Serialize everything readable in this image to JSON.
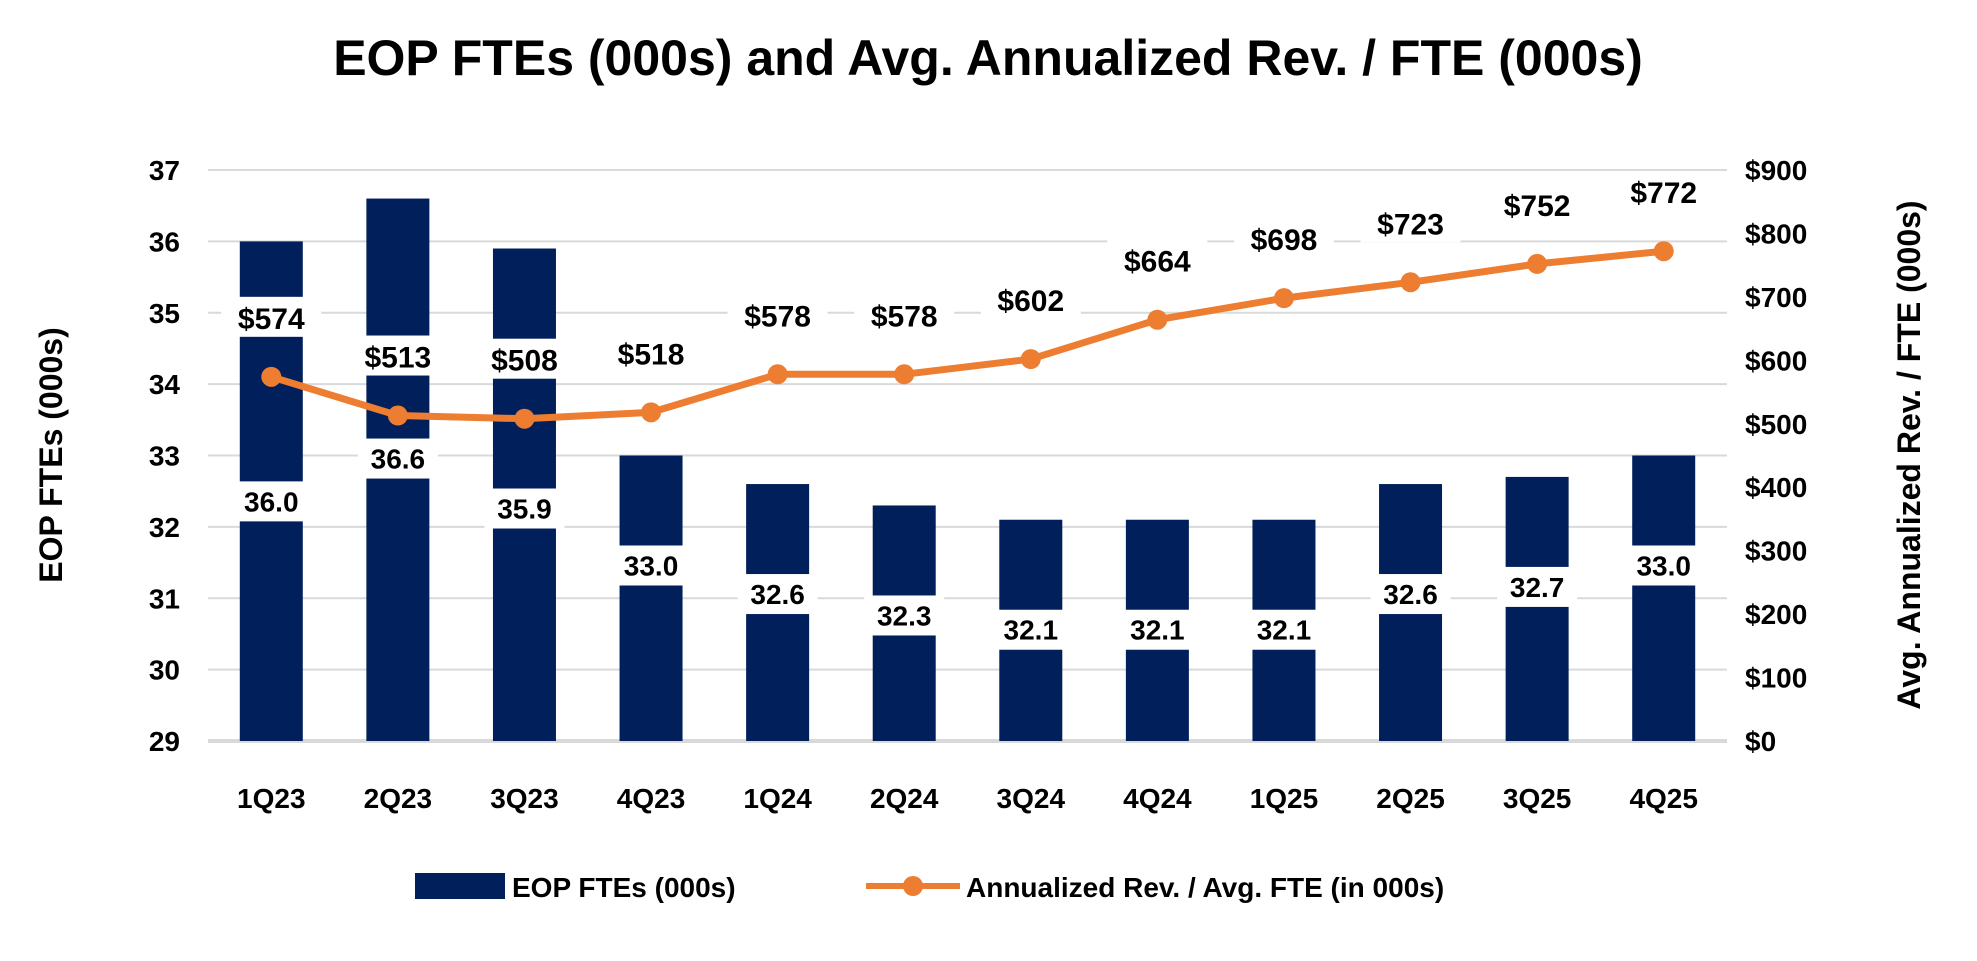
{
  "chart_data": {
    "type": "bar+line",
    "title": "EOP FTEs (000s) and Avg. Annualized Rev. / FTE (000s)",
    "categories": [
      "1Q23",
      "2Q23",
      "3Q23",
      "4Q23",
      "1Q24",
      "2Q24",
      "3Q24",
      "4Q24",
      "1Q25",
      "2Q25",
      "3Q25",
      "4Q25"
    ],
    "series": [
      {
        "name": "EOP FTEs (000s)",
        "type": "bar",
        "axis": "left",
        "color": "#001F5B",
        "values": [
          36.0,
          36.6,
          35.9,
          33.0,
          32.6,
          32.3,
          32.1,
          32.1,
          32.1,
          32.6,
          32.7,
          33.0
        ],
        "labels": [
          "36.0",
          "36.6",
          "35.9",
          "33.0",
          "32.6",
          "32.3",
          "32.1",
          "32.1",
          "32.1",
          "32.6",
          "32.7",
          "33.0"
        ]
      },
      {
        "name": "Annualized Rev. / Avg. FTE (in 000s)",
        "type": "line",
        "axis": "right",
        "color": "#ED7D31",
        "values": [
          574,
          513,
          508,
          518,
          578,
          578,
          602,
          664,
          698,
          723,
          752,
          772
        ],
        "labels": [
          "$574",
          "$513",
          "$508",
          "$518",
          "$578",
          "$578",
          "$602",
          "$664",
          "$698",
          "$723",
          "$752",
          "$772"
        ]
      }
    ],
    "ylabel": "EOP FTEs (000s)",
    "y2label": "Avg. Annualized Rev. / FTE (000s)",
    "ylim": [
      29,
      37
    ],
    "y2lim": [
      0,
      900
    ],
    "yticks": [
      "29",
      "30",
      "31",
      "32",
      "33",
      "34",
      "35",
      "36",
      "37"
    ],
    "y2ticks": [
      "$0",
      "$100",
      "$200",
      "$300",
      "$400",
      "$500",
      "$600",
      "$700",
      "$800",
      "$900"
    ],
    "grid": true,
    "legend": "bottom-center"
  }
}
